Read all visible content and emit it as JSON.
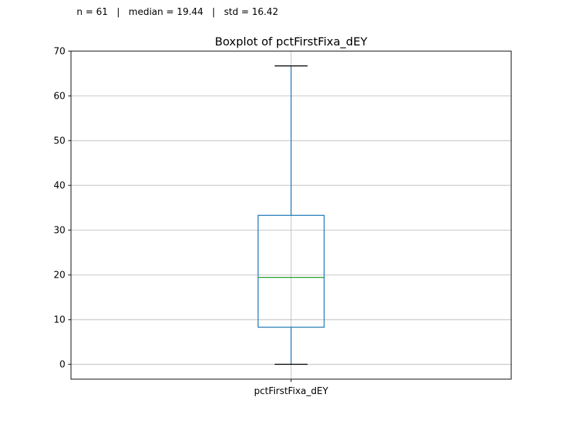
{
  "stats": {
    "n": "n = 61",
    "median": "median = 19.44",
    "std": "std = 16.42",
    "separator": "|"
  },
  "chart_data": {
    "type": "box",
    "title": "Boxplot of pctFirstFixa_dEY",
    "xlabel": "",
    "ylabel": "",
    "categories": [
      "pctFirstFixa_dEY"
    ],
    "ylim": [
      -3.3,
      70
    ],
    "yticks": [
      0,
      10,
      20,
      30,
      40,
      50,
      60,
      70
    ],
    "grid": true,
    "boxes": [
      {
        "whisker_low": 0,
        "q1": 8.3,
        "median": 19.44,
        "q3": 33.3,
        "whisker_high": 66.7
      }
    ],
    "colors": {
      "box": "#1f77b4",
      "median": "#2ca02c",
      "whisker": "#1f77b4",
      "cap": "#000000",
      "grid": "#b0b0b0",
      "axes": "#000000"
    }
  }
}
